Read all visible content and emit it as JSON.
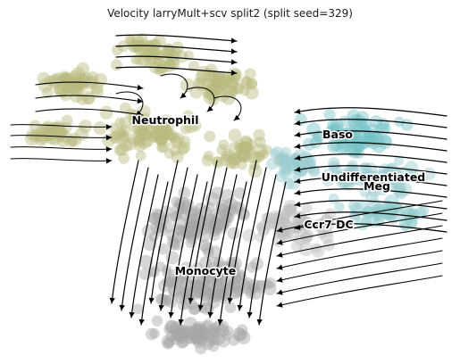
{
  "chart_data": {
    "type": "scatter",
    "title": "Velocity larryMult+scv split2 (split seed=329)",
    "xlabel": "",
    "ylabel": "",
    "grid": false,
    "legend": "none",
    "overlay": "velocity streamlines",
    "clusters": [
      {
        "name": "Neutrophil",
        "color": "#b9bb7e"
      },
      {
        "name": "Baso",
        "color": "#76c4c8"
      },
      {
        "name": "Undifferentiated",
        "color": "#98cdd0"
      },
      {
        "name": "Meg",
        "color": "#8fc9cd"
      },
      {
        "name": "Ccr7 DC",
        "color": "#bfbfbf"
      },
      {
        "name": "Monocyte",
        "color": "#a6a6a6"
      }
    ]
  }
}
